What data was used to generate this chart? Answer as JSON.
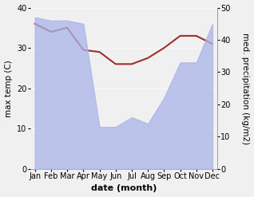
{
  "months": [
    "Jan",
    "Feb",
    "Mar",
    "Apr",
    "May",
    "Jun",
    "Jul",
    "Aug",
    "Sep",
    "Oct",
    "Nov",
    "Dec"
  ],
  "x": [
    0,
    1,
    2,
    3,
    4,
    5,
    6,
    7,
    8,
    9,
    10,
    11
  ],
  "temp": [
    36,
    34,
    35,
    29.5,
    29,
    26,
    26,
    27.5,
    30,
    33,
    33,
    31
  ],
  "precip": [
    47,
    46,
    46,
    45,
    13,
    13,
    16,
    14,
    22,
    33,
    33,
    45
  ],
  "temp_color": "#a03030",
  "precip_color": "#aab4e8",
  "precip_alpha": 0.75,
  "ylabel_left": "max temp (C)",
  "ylabel_right": "med. precipitation (kg/m2)",
  "xlabel": "date (month)",
  "ylim_left": [
    0,
    40
  ],
  "ylim_right": [
    0,
    50
  ],
  "yticks_left": [
    0,
    10,
    20,
    30,
    40
  ],
  "yticks_right": [
    0,
    10,
    20,
    30,
    40,
    50
  ],
  "background_color": "#f0f0f0",
  "temp_linewidth": 1.5,
  "xlabel_fontsize": 8,
  "ylabel_fontsize": 7.5,
  "tick_fontsize": 7
}
